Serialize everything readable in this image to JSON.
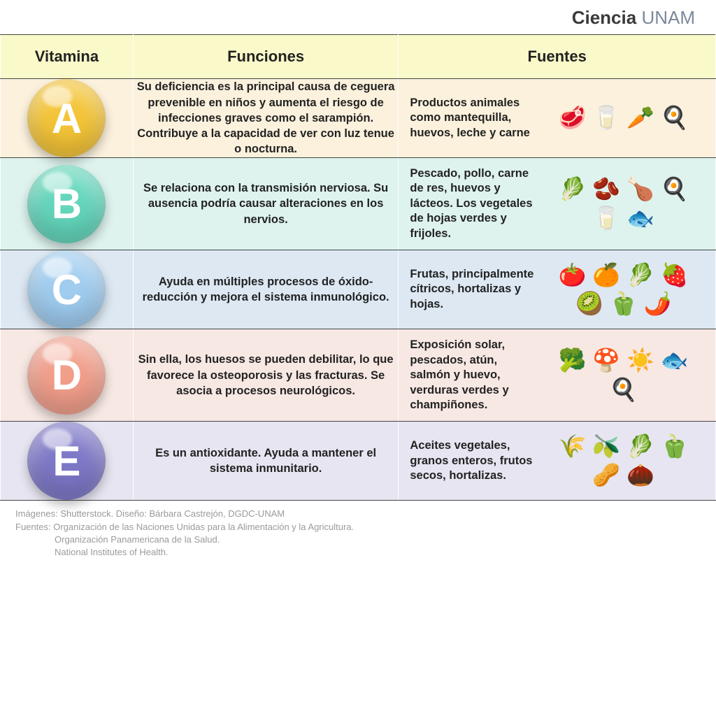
{
  "logo": {
    "text1": "Ciencia",
    "text2": " UNAM"
  },
  "header": {
    "col1": "Vitamina",
    "col2": "Funciones",
    "col3": "Fuentes",
    "bg": "#faf9c9"
  },
  "rows": [
    {
      "letter": "A",
      "ball_color": "#f4c437",
      "row_bg": "#fbf1dd",
      "funciones": "Su deficiencia es la principal causa de ceguera prevenible en niños y aumenta el riesgo de infecciones graves como el sarampión. Contribuye a la capacidad de ver con luz tenue o nocturna.",
      "fuentes": "Productos animales como mantequilla, huevos, leche y carne",
      "icons": "🥩 🥛 🥕 🍳"
    },
    {
      "letter": "B",
      "ball_color": "#63d6bb",
      "row_bg": "#def3ee",
      "funciones": "Se relaciona con la transmisión nerviosa. Su ausencia podría causar alteraciones en los nervios.",
      "fuentes": "Pescado, pollo, carne de res, huevos y lácteos. Los vegetales de hojas verdes y frijoles.",
      "icons": "🥬 🫘 🍗 🍳 🥛 🐟"
    },
    {
      "letter": "C",
      "ball_color": "#9fccef",
      "row_bg": "#dde8f3",
      "funciones": "Ayuda en múltiples procesos de óxido-reducción y mejora el sistema inmunológico.",
      "fuentes": "Frutas, principalmente cítricos, hortalizas y hojas.",
      "icons": "🍅 🍊 🥬 🍓 🥝 🫑 🌶️"
    },
    {
      "letter": "D",
      "ball_color": "#f19e8a",
      "row_bg": "#f7e8e3",
      "funciones": "Sin ella, los huesos se pueden debilitar, lo que favorece la osteoporosis y las fracturas. Se asocia a procesos neurológicos.",
      "fuentes": "Exposición solar, pescados, atún, salmón y huevo, verduras verdes y champiñones.",
      "icons": "🥦 🍄 ☀️ 🐟 🍳"
    },
    {
      "letter": "E",
      "ball_color": "#7d77c7",
      "row_bg": "#e6e5f1",
      "funciones": "Es un antioxidante. Ayuda a mantener el sistema inmunitario.",
      "fuentes": "Aceites vegetales, granos enteros, frutos secos, hortalizas.",
      "icons": "🌾 🫒 🥬 🫑 🥜 🌰"
    }
  ],
  "footer": {
    "line1": "Imágenes: Shutterstock. Diseño: Bárbara Castrejón, DGDC-UNAM",
    "line2_label": "Fuentes:  ",
    "line2a": "Organización de las Naciones Unidas para la Alimentación y la Agricultura.",
    "line2b": "Organización Panamericana de la Salud.",
    "line2c": "National Institutes of Health."
  }
}
